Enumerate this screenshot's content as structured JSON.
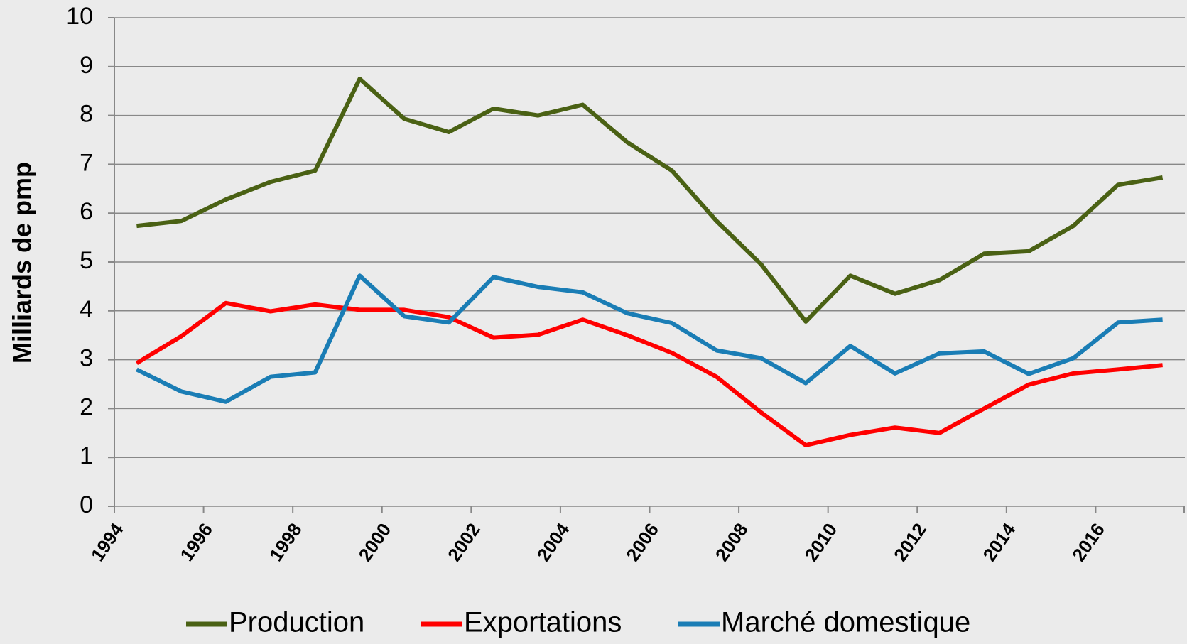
{
  "chart_data": {
    "type": "line",
    "y_label": "Milliards de pmp",
    "categories": [
      "1994",
      null,
      "1996",
      null,
      "1998",
      null,
      "2000",
      null,
      "2002",
      null,
      "2004",
      null,
      "2006",
      null,
      "2008",
      null,
      "2010",
      null,
      "2012",
      null,
      "2014",
      null,
      "2016",
      null
    ],
    "series": [
      {
        "name": "Production",
        "color": "#4a6114",
        "values": [
          5.74,
          5.84,
          6.28,
          6.64,
          6.87,
          8.75,
          7.93,
          7.66,
          8.14,
          8.0,
          8.22,
          7.45,
          6.87,
          5.84,
          4.95,
          3.78,
          4.72,
          4.35,
          4.63,
          5.17,
          5.22,
          5.74,
          6.58,
          6.73
        ]
      },
      {
        "name": "Exportations",
        "color": "#ff0000",
        "values": [
          2.93,
          3.48,
          4.16,
          3.99,
          4.13,
          4.02,
          4.02,
          3.87,
          3.45,
          3.51,
          3.82,
          3.5,
          3.14,
          2.65,
          1.92,
          1.25,
          1.46,
          1.61,
          1.5,
          2.0,
          2.49,
          2.72,
          2.8,
          2.89
        ]
      },
      {
        "name": "Marché domestique",
        "color": "#1a7db5",
        "values": [
          2.8,
          2.35,
          2.14,
          2.65,
          2.74,
          4.72,
          3.89,
          3.76,
          4.69,
          4.49,
          4.38,
          3.95,
          3.75,
          3.19,
          3.03,
          2.52,
          3.28,
          2.72,
          3.13,
          3.17,
          2.71,
          3.03,
          3.76,
          3.82
        ]
      }
    ],
    "ylim": [
      0,
      10
    ],
    "yticks": [
      0,
      1,
      2,
      3,
      4,
      5,
      6,
      7,
      8,
      9,
      10
    ],
    "grid": true
  }
}
